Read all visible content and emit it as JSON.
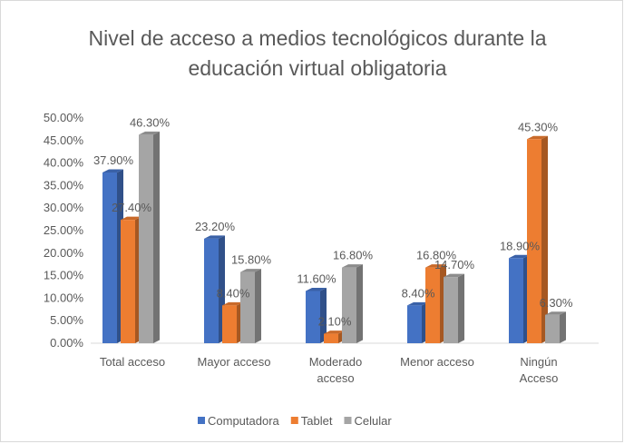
{
  "chart_data": {
    "type": "bar3d",
    "title": "Nivel de acceso a medios tecnológicos durante la educación virtual obligatoria",
    "categories": [
      "Total acceso",
      "Mayor acceso",
      "Moderado acceso",
      "Menor acceso",
      "Ningún Acceso"
    ],
    "series": [
      {
        "name": "Computadora",
        "color": "#4472c4",
        "values": [
          37.9,
          23.2,
          11.6,
          8.4,
          18.9
        ],
        "value_labels": [
          "37.90%",
          "23.20%",
          "11.60%",
          "8.40%",
          "18.90%"
        ]
      },
      {
        "name": "Tablet",
        "color": "#ed7d31",
        "values": [
          27.4,
          8.4,
          2.1,
          16.8,
          45.3
        ],
        "value_labels": [
          "27.40%",
          "8.40%",
          "2.10%",
          "16.80%",
          "45.30%"
        ]
      },
      {
        "name": "Celular",
        "color": "#a5a5a5",
        "values": [
          46.3,
          15.8,
          16.8,
          14.7,
          6.3
        ],
        "value_labels": [
          "46.30%",
          "15.80%",
          "16.80%",
          "14.70%",
          "6.30%"
        ]
      }
    ],
    "ylim": [
      0,
      50
    ],
    "yticks": [
      {
        "value": 0,
        "label": "0.00%"
      },
      {
        "value": 5,
        "label": "5.00%"
      },
      {
        "value": 10,
        "label": "10.00%"
      },
      {
        "value": 15,
        "label": "15.00%"
      },
      {
        "value": 20,
        "label": "20.00%"
      },
      {
        "value": 25,
        "label": "25.00%"
      },
      {
        "value": 30,
        "label": "30.00%"
      },
      {
        "value": 35,
        "label": "35.00%"
      },
      {
        "value": 40,
        "label": "40.00%"
      },
      {
        "value": 45,
        "label": "45.00%"
      },
      {
        "value": 50,
        "label": "50.00%"
      }
    ],
    "legend": "bottom"
  }
}
